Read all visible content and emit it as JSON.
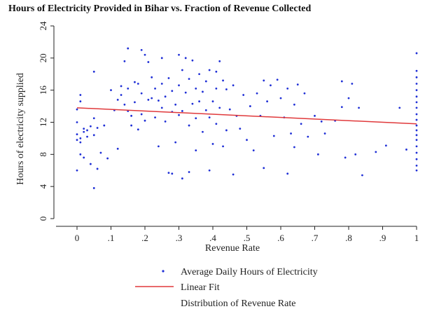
{
  "chart_data": {
    "type": "scatter",
    "title": "Hours of Electricity Provided in Bihar vs. Fraction of Revenue Collected",
    "xlabel": "Revenue Rate",
    "ylabel": "Hours of electricity supplied",
    "xlim": [
      -0.05,
      1.0
    ],
    "ylim": [
      0,
      24
    ],
    "x_ticks": [
      "0",
      ".1",
      ".2",
      ".3",
      ".4",
      ".5",
      ".6",
      ".7",
      ".8",
      ".9",
      "1"
    ],
    "x_tick_values": [
      0,
      0.1,
      0.2,
      0.3,
      0.4,
      0.5,
      0.6,
      0.7,
      0.8,
      0.9,
      1.0
    ],
    "y_ticks": [
      "0",
      "4",
      "8",
      "12",
      "16",
      "20",
      "24"
    ],
    "y_tick_values": [
      0,
      4,
      8,
      12,
      16,
      20,
      24
    ],
    "grid": "none",
    "legend_placement": "bottom",
    "colors": {
      "points": "#1f2fd6",
      "fit": "#e0393b",
      "axis": "#222222"
    },
    "series": [
      {
        "name": "Average Daily Hours of Electricity",
        "kind": "scatter",
        "points": [
          [
            0.0,
            13.6
          ],
          [
            0.0,
            12.0
          ],
          [
            0.0,
            10.5
          ],
          [
            0.0,
            9.8
          ],
          [
            0.0,
            6.0
          ],
          [
            0.01,
            15.4
          ],
          [
            0.01,
            14.6
          ],
          [
            0.01,
            10.0
          ],
          [
            0.01,
            9.5
          ],
          [
            0.01,
            8.0
          ],
          [
            0.02,
            11.2
          ],
          [
            0.02,
            10.8
          ],
          [
            0.02,
            7.6
          ],
          [
            0.03,
            11.0
          ],
          [
            0.03,
            10.2
          ],
          [
            0.04,
            11.5
          ],
          [
            0.04,
            6.8
          ],
          [
            0.05,
            18.3
          ],
          [
            0.05,
            12.5
          ],
          [
            0.05,
            10.4
          ],
          [
            0.05,
            3.8
          ],
          [
            0.06,
            11.3
          ],
          [
            0.06,
            6.2
          ],
          [
            0.07,
            8.2
          ],
          [
            0.08,
            11.6
          ],
          [
            0.09,
            7.5
          ],
          [
            0.1,
            16.0
          ],
          [
            0.11,
            13.5
          ],
          [
            0.12,
            14.8
          ],
          [
            0.12,
            8.7
          ],
          [
            0.13,
            16.5
          ],
          [
            0.13,
            15.4
          ],
          [
            0.14,
            19.6
          ],
          [
            0.14,
            14.2
          ],
          [
            0.15,
            21.2
          ],
          [
            0.15,
            16.2
          ],
          [
            0.15,
            13.4
          ],
          [
            0.16,
            12.8
          ],
          [
            0.16,
            11.6
          ],
          [
            0.17,
            17.0
          ],
          [
            0.17,
            14.5
          ],
          [
            0.18,
            16.8
          ],
          [
            0.18,
            11.1
          ],
          [
            0.19,
            21.0
          ],
          [
            0.19,
            15.6
          ],
          [
            0.19,
            13.0
          ],
          [
            0.2,
            20.4
          ],
          [
            0.2,
            12.2
          ],
          [
            0.21,
            19.5
          ],
          [
            0.21,
            14.8
          ],
          [
            0.22,
            17.6
          ],
          [
            0.22,
            15.0
          ],
          [
            0.23,
            16.2
          ],
          [
            0.23,
            12.6
          ],
          [
            0.24,
            14.7
          ],
          [
            0.24,
            9.0
          ],
          [
            0.25,
            20.0
          ],
          [
            0.25,
            16.8
          ],
          [
            0.25,
            13.8
          ],
          [
            0.26,
            15.2
          ],
          [
            0.26,
            12.1
          ],
          [
            0.27,
            17.5
          ],
          [
            0.27,
            5.7
          ],
          [
            0.28,
            15.9
          ],
          [
            0.28,
            13.3
          ],
          [
            0.28,
            5.6
          ],
          [
            0.29,
            14.2
          ],
          [
            0.29,
            9.5
          ],
          [
            0.3,
            20.4
          ],
          [
            0.3,
            16.6
          ],
          [
            0.3,
            12.9
          ],
          [
            0.31,
            18.5
          ],
          [
            0.31,
            13.4
          ],
          [
            0.31,
            5.0
          ],
          [
            0.32,
            20.0
          ],
          [
            0.32,
            15.7
          ],
          [
            0.33,
            17.4
          ],
          [
            0.33,
            11.6
          ],
          [
            0.33,
            5.8
          ],
          [
            0.34,
            19.7
          ],
          [
            0.34,
            14.3
          ],
          [
            0.35,
            16.2
          ],
          [
            0.35,
            12.5
          ],
          [
            0.35,
            8.5
          ],
          [
            0.36,
            18.0
          ],
          [
            0.36,
            14.6
          ],
          [
            0.37,
            15.8
          ],
          [
            0.37,
            10.8
          ],
          [
            0.38,
            17.1
          ],
          [
            0.38,
            13.5
          ],
          [
            0.39,
            18.5
          ],
          [
            0.39,
            12.6
          ],
          [
            0.39,
            6.0
          ],
          [
            0.4,
            14.6
          ],
          [
            0.4,
            9.3
          ],
          [
            0.41,
            18.3
          ],
          [
            0.41,
            16.2
          ],
          [
            0.41,
            11.8
          ],
          [
            0.42,
            19.6
          ],
          [
            0.42,
            13.8
          ],
          [
            0.43,
            17.2
          ],
          [
            0.43,
            9.0
          ],
          [
            0.44,
            16.1
          ],
          [
            0.44,
            11.0
          ],
          [
            0.45,
            13.6
          ],
          [
            0.46,
            16.6
          ],
          [
            0.46,
            5.5
          ],
          [
            0.47,
            12.8
          ],
          [
            0.48,
            11.2
          ],
          [
            0.49,
            15.4
          ],
          [
            0.5,
            9.8
          ],
          [
            0.51,
            14.0
          ],
          [
            0.52,
            8.5
          ],
          [
            0.53,
            15.6
          ],
          [
            0.54,
            12.8
          ],
          [
            0.55,
            17.2
          ],
          [
            0.55,
            6.3
          ],
          [
            0.56,
            14.6
          ],
          [
            0.57,
            16.6
          ],
          [
            0.58,
            10.3
          ],
          [
            0.59,
            17.3
          ],
          [
            0.6,
            15.0
          ],
          [
            0.61,
            12.6
          ],
          [
            0.62,
            16.2
          ],
          [
            0.62,
            5.6
          ],
          [
            0.63,
            10.6
          ],
          [
            0.64,
            14.2
          ],
          [
            0.64,
            8.9
          ],
          [
            0.65,
            16.7
          ],
          [
            0.66,
            11.8
          ],
          [
            0.67,
            15.6
          ],
          [
            0.68,
            10.2
          ],
          [
            0.7,
            12.8
          ],
          [
            0.71,
            8.0
          ],
          [
            0.72,
            12.1
          ],
          [
            0.73,
            10.6
          ],
          [
            0.76,
            12.2
          ],
          [
            0.78,
            17.1
          ],
          [
            0.78,
            13.9
          ],
          [
            0.79,
            7.6
          ],
          [
            0.8,
            15.0
          ],
          [
            0.81,
            16.8
          ],
          [
            0.82,
            8.0
          ],
          [
            0.83,
            13.8
          ],
          [
            0.84,
            5.4
          ],
          [
            0.88,
            8.3
          ],
          [
            0.91,
            9.1
          ],
          [
            0.95,
            13.8
          ],
          [
            0.97,
            8.6
          ],
          [
            1.0,
            20.6
          ],
          [
            1.0,
            18.4
          ],
          [
            1.0,
            17.6
          ],
          [
            1.0,
            16.8
          ],
          [
            1.0,
            16.0
          ],
          [
            1.0,
            15.2
          ],
          [
            1.0,
            14.5
          ],
          [
            1.0,
            13.8
          ],
          [
            1.0,
            13.0
          ],
          [
            1.0,
            12.3
          ],
          [
            1.0,
            11.6
          ],
          [
            1.0,
            11.0
          ],
          [
            1.0,
            10.4
          ],
          [
            1.0,
            9.8
          ],
          [
            1.0,
            9.0
          ],
          [
            1.0,
            8.2
          ],
          [
            1.0,
            7.4
          ],
          [
            1.0,
            6.6
          ],
          [
            1.0,
            6.0
          ]
        ]
      },
      {
        "name": "Linear Fit",
        "kind": "line",
        "x": [
          0.0,
          1.0
        ],
        "y": [
          13.8,
          11.8
        ]
      },
      {
        "name": "Distribution of Revenue Rate",
        "kind": "rug"
      }
    ]
  }
}
